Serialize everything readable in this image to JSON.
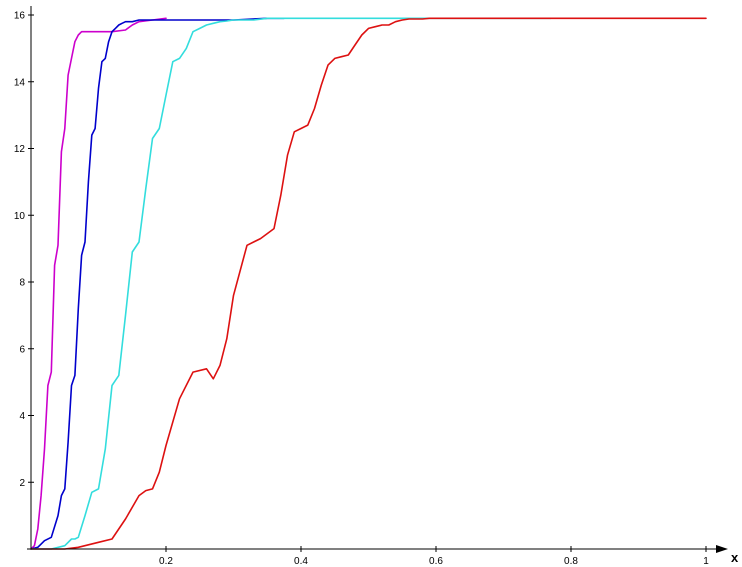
{
  "chart_data": {
    "type": "line",
    "title": "",
    "xlabel": "x",
    "ylabel": "",
    "xlim": [
      0,
      1.05
    ],
    "ylim": [
      0,
      16.2
    ],
    "grid": false,
    "legend": "none",
    "x_ticks": [
      0.2,
      0.4,
      0.6,
      0.8,
      1
    ],
    "x_tick_labels": [
      "0.2",
      "0.4",
      "0.6",
      "0.8",
      "1"
    ],
    "y_ticks": [
      2,
      4,
      6,
      8,
      10,
      12,
      14,
      16
    ],
    "y_tick_labels": [
      "2",
      "4",
      "6",
      "8",
      "10",
      "12",
      "14",
      "16"
    ],
    "series": [
      {
        "color": "#cc00cc",
        "x": [
          0.0,
          0.005,
          0.01,
          0.015,
          0.02,
          0.025,
          0.03,
          0.035,
          0.04,
          0.045,
          0.05,
          0.055,
          0.06,
          0.065,
          0.07,
          0.075,
          0.08,
          0.09,
          0.1,
          0.12,
          0.14,
          0.15,
          0.16,
          0.18,
          0.2
        ],
        "y": [
          0.0,
          0.1,
          0.6,
          1.6,
          3.0,
          4.9,
          5.3,
          8.5,
          9.1,
          11.9,
          12.6,
          14.2,
          14.7,
          15.2,
          15.4,
          15.5,
          15.5,
          15.5,
          15.5,
          15.5,
          15.55,
          15.7,
          15.8,
          15.85,
          15.9
        ]
      },
      {
        "color": "#0000cc",
        "x": [
          0.0,
          0.01,
          0.02,
          0.03,
          0.04,
          0.045,
          0.05,
          0.055,
          0.06,
          0.065,
          0.07,
          0.075,
          0.08,
          0.085,
          0.09,
          0.095,
          0.1,
          0.105,
          0.11,
          0.115,
          0.12,
          0.125,
          0.13,
          0.135,
          0.14,
          0.15,
          0.16,
          0.18,
          0.2,
          0.25,
          0.3,
          0.35,
          0.375
        ],
        "y": [
          0.0,
          0.05,
          0.25,
          0.35,
          1.0,
          1.6,
          1.8,
          3.2,
          4.9,
          5.2,
          7.2,
          8.8,
          9.2,
          11.0,
          12.4,
          12.6,
          13.8,
          14.6,
          14.7,
          15.2,
          15.5,
          15.6,
          15.7,
          15.75,
          15.8,
          15.8,
          15.85,
          15.85,
          15.85,
          15.85,
          15.85,
          15.9,
          15.9
        ]
      },
      {
        "color": "#33dddd",
        "x": [
          0.0,
          0.03,
          0.05,
          0.06,
          0.065,
          0.07,
          0.08,
          0.09,
          0.1,
          0.11,
          0.12,
          0.13,
          0.14,
          0.15,
          0.16,
          0.17,
          0.18,
          0.19,
          0.2,
          0.21,
          0.22,
          0.23,
          0.24,
          0.25,
          0.26,
          0.27,
          0.28,
          0.29,
          0.3,
          0.31,
          0.32,
          0.33,
          0.35,
          0.4,
          0.5,
          0.6,
          0.7,
          0.77
        ],
        "y": [
          0.0,
          0.0,
          0.1,
          0.3,
          0.3,
          0.35,
          1.0,
          1.7,
          1.8,
          3.0,
          4.9,
          5.2,
          7.0,
          8.9,
          9.2,
          10.8,
          12.3,
          12.6,
          13.6,
          14.6,
          14.7,
          15.0,
          15.5,
          15.6,
          15.7,
          15.75,
          15.8,
          15.82,
          15.85,
          15.85,
          15.85,
          15.85,
          15.9,
          15.9,
          15.9,
          15.9,
          15.9,
          15.9
        ]
      },
      {
        "color": "#dd1111",
        "x": [
          0.0,
          0.05,
          0.07,
          0.1,
          0.12,
          0.14,
          0.16,
          0.17,
          0.18,
          0.19,
          0.2,
          0.22,
          0.24,
          0.26,
          0.27,
          0.28,
          0.29,
          0.3,
          0.32,
          0.34,
          0.36,
          0.37,
          0.38,
          0.39,
          0.4,
          0.41,
          0.42,
          0.43,
          0.44,
          0.45,
          0.46,
          0.47,
          0.48,
          0.49,
          0.5,
          0.51,
          0.52,
          0.53,
          0.54,
          0.55,
          0.56,
          0.57,
          0.58,
          0.59,
          0.6,
          0.61,
          0.62,
          0.63,
          0.64,
          0.65,
          0.66,
          0.67,
          0.68,
          0.69,
          0.7,
          0.72,
          0.74,
          0.76,
          0.78,
          0.8,
          0.85,
          0.9,
          1.0
        ],
        "y": [
          0.0,
          0.0,
          0.05,
          0.2,
          0.3,
          0.9,
          1.6,
          1.75,
          1.8,
          2.3,
          3.1,
          4.5,
          5.3,
          5.4,
          5.1,
          5.5,
          6.3,
          7.6,
          9.1,
          9.3,
          9.6,
          10.6,
          11.8,
          12.5,
          12.6,
          12.7,
          13.2,
          13.9,
          14.5,
          14.7,
          14.75,
          14.8,
          15.1,
          15.4,
          15.6,
          15.65,
          15.7,
          15.7,
          15.8,
          15.85,
          15.88,
          15.88,
          15.88,
          15.9,
          15.9,
          15.9,
          15.9,
          15.9,
          15.9,
          15.9,
          15.9,
          15.9,
          15.9,
          15.9,
          15.9,
          15.9,
          15.9,
          15.9,
          15.9,
          15.9,
          15.9,
          15.9,
          15.9
        ]
      }
    ]
  }
}
